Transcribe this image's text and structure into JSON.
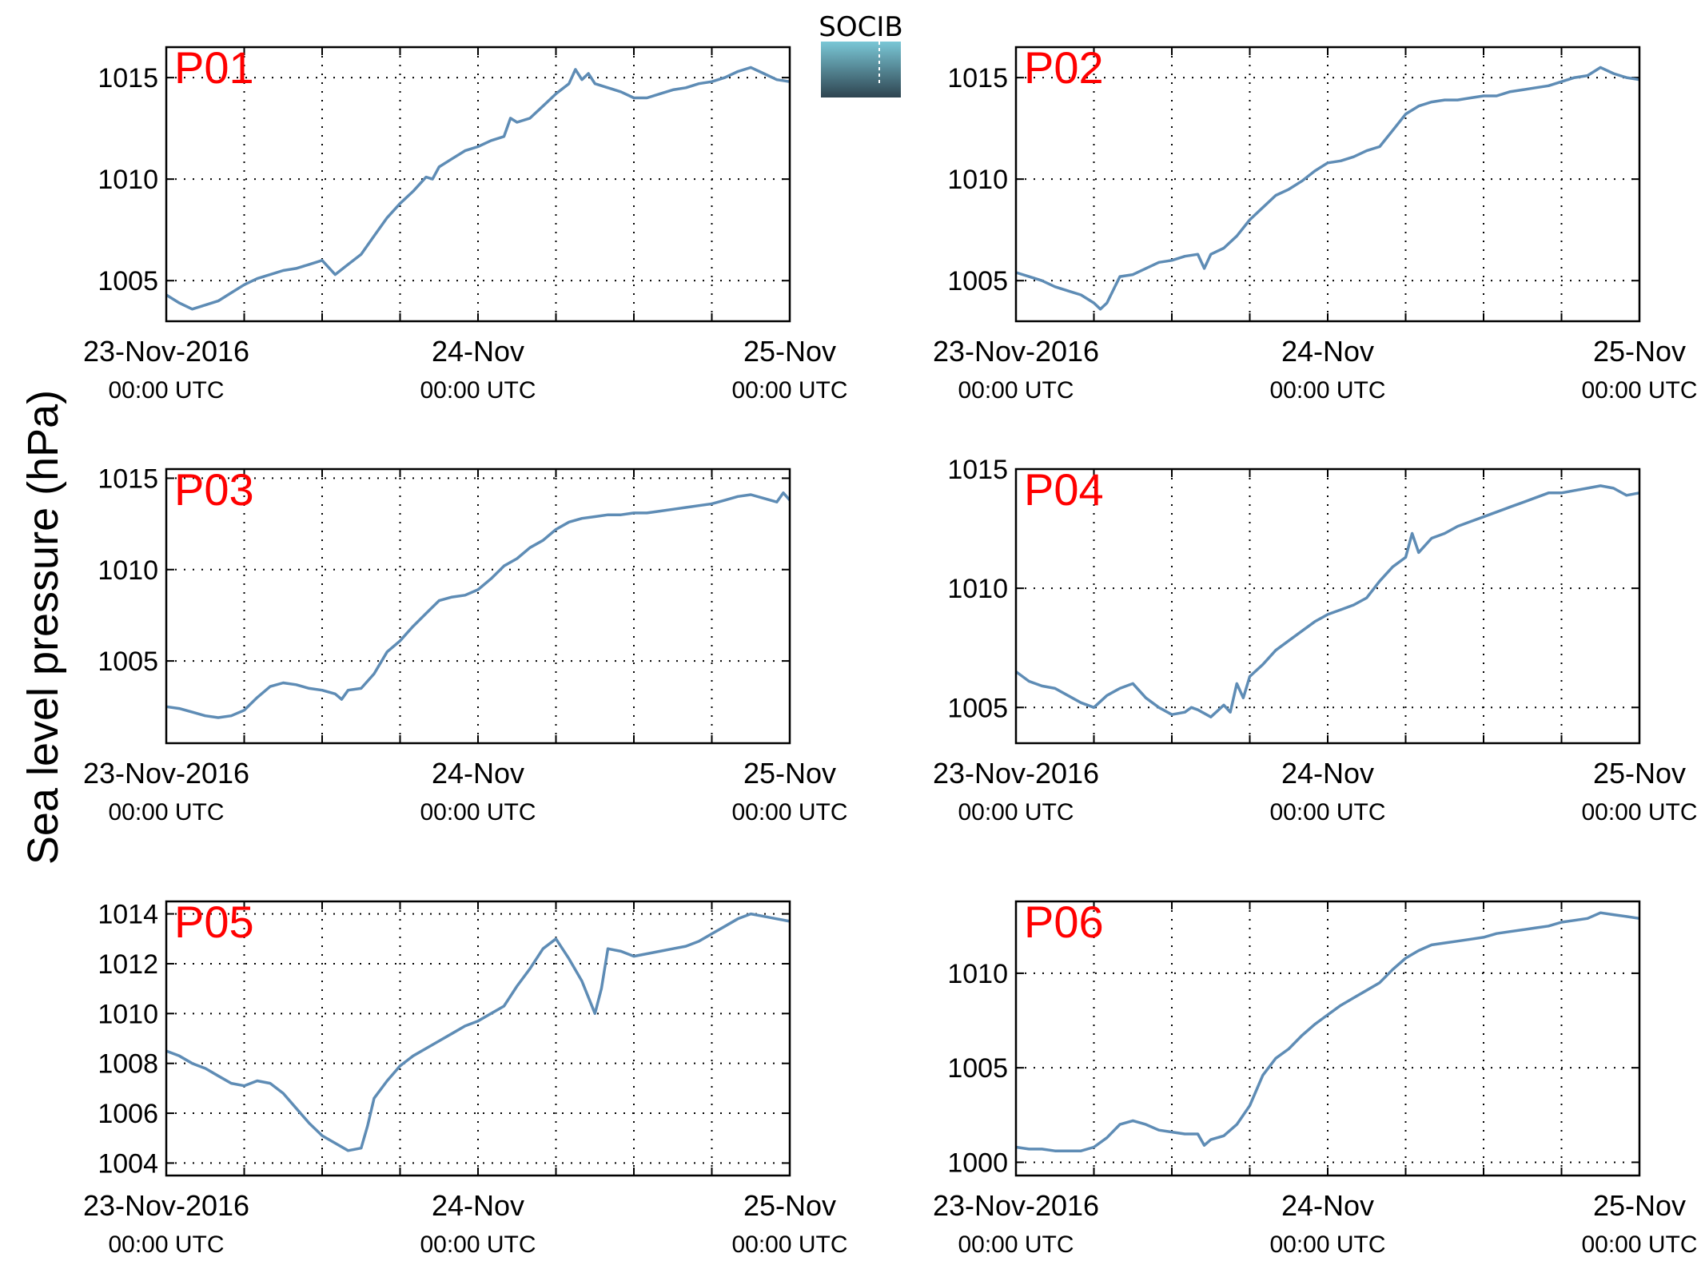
{
  "figure": {
    "ylabel": "Sea level pressure (hPa)",
    "logo_text": "SOCIB",
    "colors": {
      "line": "#5e8cb5",
      "panel_label": "#ff0000",
      "logo_top": "#7ac7d6",
      "logo_bottom": "#2e4450"
    },
    "x_ticks": [
      {
        "main": "23-Nov-2016",
        "sub": "00:00 UTC"
      },
      {
        "main": "24-Nov",
        "sub": "00:00 UTC"
      },
      {
        "main": "25-Nov",
        "sub": "00:00 UTC"
      }
    ]
  },
  "chart_data": [
    {
      "type": "line",
      "title": "P01",
      "xlim": [
        0,
        48
      ],
      "ylim": [
        1003,
        1016.5
      ],
      "yticks": [
        1005,
        1010,
        1015
      ],
      "grid": true,
      "series": [
        {
          "x": [
            0,
            1,
            2,
            3,
            4,
            5,
            6,
            7,
            8,
            9,
            10,
            11,
            12,
            13,
            14,
            15,
            16,
            17,
            18,
            19,
            20,
            20.5,
            21,
            22,
            23,
            24,
            25,
            26,
            26.5,
            27,
            28,
            29,
            30,
            31,
            31.5,
            32,
            32.5,
            33,
            34,
            35,
            36,
            37,
            38,
            39,
            40,
            41,
            42,
            43,
            44,
            45,
            46,
            47,
            48
          ],
          "y": [
            1004.3,
            1003.9,
            1003.6,
            1003.8,
            1004.0,
            1004.4,
            1004.8,
            1005.1,
            1005.3,
            1005.5,
            1005.6,
            1005.8,
            1006.0,
            1005.3,
            1005.8,
            1006.3,
            1007.2,
            1008.1,
            1008.8,
            1009.4,
            1010.1,
            1010.0,
            1010.6,
            1011.0,
            1011.4,
            1011.6,
            1011.9,
            1012.1,
            1013.0,
            1012.8,
            1013.0,
            1013.6,
            1014.2,
            1014.7,
            1015.4,
            1014.9,
            1015.2,
            1014.7,
            1014.5,
            1014.3,
            1014.0,
            1014.0,
            1014.2,
            1014.4,
            1014.5,
            1014.7,
            1014.8,
            1015.0,
            1015.3,
            1015.5,
            1015.2,
            1014.9,
            1014.8
          ]
        }
      ]
    },
    {
      "type": "line",
      "title": "P02",
      "xlim": [
        0,
        48
      ],
      "ylim": [
        1003,
        1016.5
      ],
      "yticks": [
        1005,
        1010,
        1015
      ],
      "grid": true,
      "series": [
        {
          "x": [
            0,
            1,
            2,
            3,
            4,
            5,
            6,
            6.5,
            7,
            8,
            9,
            10,
            11,
            12,
            13,
            14,
            14.5,
            15,
            16,
            17,
            18,
            19,
            20,
            21,
            22,
            23,
            24,
            25,
            26,
            27,
            28,
            29,
            30,
            31,
            32,
            33,
            34,
            35,
            36,
            37,
            38,
            39,
            40,
            41,
            42,
            43,
            44,
            45,
            46,
            47,
            48
          ],
          "y": [
            1005.4,
            1005.2,
            1005.0,
            1004.7,
            1004.5,
            1004.3,
            1003.9,
            1003.6,
            1003.9,
            1005.2,
            1005.3,
            1005.6,
            1005.9,
            1006.0,
            1006.2,
            1006.3,
            1005.6,
            1006.3,
            1006.6,
            1007.2,
            1008.0,
            1008.6,
            1009.2,
            1009.5,
            1009.9,
            1010.4,
            1010.8,
            1010.9,
            1011.1,
            1011.4,
            1011.6,
            1012.4,
            1013.2,
            1013.6,
            1013.8,
            1013.9,
            1013.9,
            1014.0,
            1014.1,
            1014.1,
            1014.3,
            1014.4,
            1014.5,
            1014.6,
            1014.8,
            1015.0,
            1015.1,
            1015.5,
            1015.2,
            1015.0,
            1014.9
          ]
        }
      ]
    },
    {
      "type": "line",
      "title": "P03",
      "xlim": [
        0,
        48
      ],
      "ylim": [
        1000.5,
        1015.5
      ],
      "yticks": [
        1005,
        1010,
        1015
      ],
      "grid": true,
      "series": [
        {
          "x": [
            0,
            1,
            2,
            3,
            4,
            5,
            6,
            7,
            8,
            9,
            10,
            11,
            12,
            13,
            13.5,
            14,
            15,
            16,
            17,
            18,
            19,
            20,
            21,
            22,
            23,
            24,
            25,
            26,
            27,
            28,
            29,
            30,
            31,
            32,
            33,
            34,
            35,
            36,
            37,
            38,
            39,
            40,
            41,
            42,
            43,
            44,
            45,
            46,
            47,
            47.5,
            48
          ],
          "y": [
            1002.5,
            1002.4,
            1002.2,
            1002.0,
            1001.9,
            1002.0,
            1002.3,
            1003.0,
            1003.6,
            1003.8,
            1003.7,
            1003.5,
            1003.4,
            1003.2,
            1002.9,
            1003.4,
            1003.5,
            1004.3,
            1005.5,
            1006.1,
            1006.9,
            1007.6,
            1008.3,
            1008.5,
            1008.6,
            1008.9,
            1009.5,
            1010.2,
            1010.6,
            1011.2,
            1011.6,
            1012.2,
            1012.6,
            1012.8,
            1012.9,
            1013.0,
            1013.0,
            1013.1,
            1013.1,
            1013.2,
            1013.3,
            1013.4,
            1013.5,
            1013.6,
            1013.8,
            1014.0,
            1014.1,
            1013.9,
            1013.7,
            1014.2,
            1013.8
          ]
        }
      ]
    },
    {
      "type": "line",
      "title": "P04",
      "xlim": [
        0,
        48
      ],
      "ylim": [
        1003.5,
        1015
      ],
      "yticks": [
        1005,
        1010,
        1015
      ],
      "grid": true,
      "series": [
        {
          "x": [
            0,
            1,
            2,
            3,
            4,
            5,
            6,
            7,
            8,
            9,
            10,
            11,
            12,
            13,
            13.5,
            14,
            15,
            16,
            16.5,
            17,
            17.5,
            18,
            19,
            20,
            21,
            22,
            23,
            24,
            25,
            26,
            27,
            28,
            29,
            30,
            30.5,
            31,
            32,
            33,
            34,
            35,
            36,
            37,
            38,
            39,
            40,
            41,
            42,
            43,
            44,
            45,
            46,
            47,
            48
          ],
          "y": [
            1006.5,
            1006.1,
            1005.9,
            1005.8,
            1005.5,
            1005.2,
            1005.0,
            1005.5,
            1005.8,
            1006.0,
            1005.4,
            1005.0,
            1004.7,
            1004.8,
            1005.0,
            1004.9,
            1004.6,
            1005.1,
            1004.8,
            1006.0,
            1005.4,
            1006.3,
            1006.8,
            1007.4,
            1007.8,
            1008.2,
            1008.6,
            1008.9,
            1009.1,
            1009.3,
            1009.6,
            1010.3,
            1010.9,
            1011.3,
            1012.3,
            1011.5,
            1012.1,
            1012.3,
            1012.6,
            1012.8,
            1013.0,
            1013.2,
            1013.4,
            1013.6,
            1013.8,
            1014.0,
            1014.0,
            1014.1,
            1014.2,
            1014.3,
            1014.2,
            1013.9,
            1014.0
          ]
        }
      ]
    },
    {
      "type": "line",
      "title": "P05",
      "xlim": [
        0,
        48
      ],
      "ylim": [
        1003.5,
        1014.5
      ],
      "yticks": [
        1004,
        1006,
        1008,
        1010,
        1012,
        1014
      ],
      "grid": true,
      "series": [
        {
          "x": [
            0,
            1,
            2,
            3,
            4,
            5,
            6,
            7,
            8,
            9,
            10,
            11,
            12,
            13,
            14,
            15,
            15.5,
            16,
            17,
            18,
            19,
            20,
            21,
            22,
            23,
            24,
            25,
            26,
            27,
            28,
            29,
            30,
            31,
            32,
            33,
            33.5,
            34,
            35,
            36,
            37,
            38,
            39,
            40,
            41,
            42,
            43,
            44,
            45,
            46,
            47,
            48
          ],
          "y": [
            1008.5,
            1008.3,
            1008.0,
            1007.8,
            1007.5,
            1007.2,
            1007.1,
            1007.3,
            1007.2,
            1006.8,
            1006.2,
            1005.6,
            1005.1,
            1004.8,
            1004.5,
            1004.6,
            1005.5,
            1006.6,
            1007.3,
            1007.9,
            1008.3,
            1008.6,
            1008.9,
            1009.2,
            1009.5,
            1009.7,
            1010.0,
            1010.3,
            1011.1,
            1011.8,
            1012.6,
            1013.0,
            1012.2,
            1011.3,
            1010.0,
            1011.0,
            1012.6,
            1012.5,
            1012.3,
            1012.4,
            1012.5,
            1012.6,
            1012.7,
            1012.9,
            1013.2,
            1013.5,
            1013.8,
            1014.0,
            1013.9,
            1013.8,
            1013.7
          ]
        }
      ]
    },
    {
      "type": "line",
      "title": "P06",
      "xlim": [
        0,
        48
      ],
      "ylim": [
        999.3,
        1013.8
      ],
      "yticks": [
        1000,
        1005,
        1010
      ],
      "grid": true,
      "series": [
        {
          "x": [
            0,
            1,
            2,
            3,
            4,
            5,
            6,
            7,
            8,
            9,
            10,
            11,
            12,
            13,
            14,
            14.5,
            15,
            16,
            17,
            18,
            19,
            20,
            21,
            22,
            23,
            24,
            25,
            26,
            27,
            28,
            29,
            30,
            31,
            32,
            33,
            34,
            35,
            36,
            37,
            38,
            39,
            40,
            41,
            42,
            43,
            44,
            45,
            46,
            47,
            48
          ],
          "y": [
            1000.8,
            1000.7,
            1000.7,
            1000.6,
            1000.6,
            1000.6,
            1000.8,
            1001.3,
            1002.0,
            1002.2,
            1002.0,
            1001.7,
            1001.6,
            1001.5,
            1001.5,
            1000.9,
            1001.2,
            1001.4,
            1002.0,
            1003.0,
            1004.6,
            1005.5,
            1006.0,
            1006.7,
            1007.3,
            1007.8,
            1008.3,
            1008.7,
            1009.1,
            1009.5,
            1010.2,
            1010.8,
            1011.2,
            1011.5,
            1011.6,
            1011.7,
            1011.8,
            1011.9,
            1012.1,
            1012.2,
            1012.3,
            1012.4,
            1012.5,
            1012.7,
            1012.8,
            1012.9,
            1013.2,
            1013.1,
            1013.0,
            1012.9
          ]
        }
      ]
    }
  ]
}
